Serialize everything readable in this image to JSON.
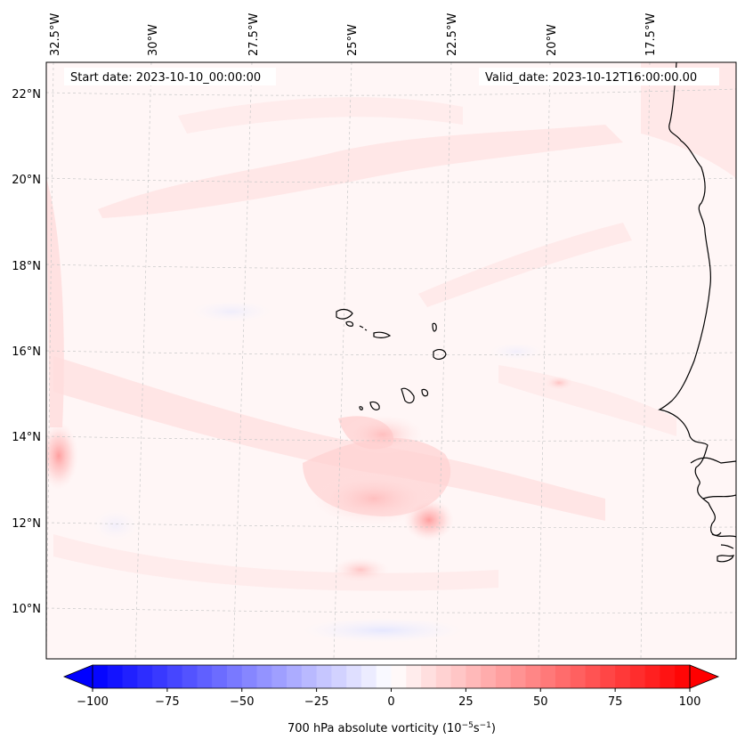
{
  "map": {
    "start_label": "Start date: 2023-10-10_00:00:00",
    "valid_label": "Valid_date: 2023-10-12T16:00:00.00",
    "lon_ticks": [
      "32.5°W",
      "30°W",
      "27.5°W",
      "25°W",
      "22.5°W",
      "20°W",
      "17.5°W"
    ],
    "lat_ticks": [
      "22°N",
      "20°N",
      "18°N",
      "16°N",
      "14°N",
      "12°N",
      "10°N"
    ],
    "colorbar": {
      "label": "700 hPa absolute vorticity (10",
      "label_exp": "−5",
      "label_unit": "s",
      "label_exp2": "−1",
      "label_close": ")",
      "ticks": [
        "−100",
        "−75",
        "−50",
        "−25",
        "0",
        "25",
        "50",
        "75",
        "100"
      ],
      "min": -100,
      "max": 100,
      "colors": {
        "negative": "#0000ff",
        "zero": "#ffffff",
        "positive": "#ff0000"
      }
    }
  }
}
